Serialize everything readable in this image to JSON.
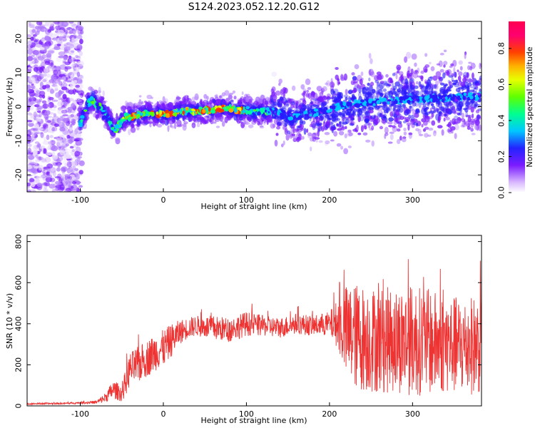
{
  "title": "S124.2023.052.12.20.G12",
  "chart_data": [
    {
      "type": "heatmap",
      "xlabel": "Height of straight line (km)",
      "ylabel": "Frequency (Hz)",
      "xlim": [
        -164,
        383
      ],
      "ylim": [
        -25,
        25
      ],
      "xticks": [
        -100,
        0,
        100,
        200,
        300
      ],
      "yticks": [
        -20,
        -10,
        0,
        10,
        20
      ],
      "colorbar": {
        "label": "Normalized spectral amplitude",
        "range": [
          0,
          0.95
        ],
        "ticks": [
          0.0,
          0.2,
          0.4,
          0.6,
          0.8
        ]
      },
      "ridge": {
        "x": [
          -100,
          -95,
          -90,
          -85,
          -80,
          -75,
          -70,
          -65,
          -60,
          -55,
          -50,
          -45,
          -40,
          -30,
          -20,
          -10,
          0,
          10,
          20,
          30,
          40,
          50,
          60,
          70,
          80,
          90,
          100,
          110,
          120,
          130,
          140,
          150,
          160,
          170,
          180,
          190,
          200,
          210,
          220,
          240,
          260,
          280,
          300,
          320,
          340,
          360,
          380
        ],
        "y": [
          -5,
          -2,
          1,
          2,
          0,
          0,
          -2,
          -4,
          -7,
          -6,
          -4,
          -3,
          -3,
          -2.5,
          -2,
          -2,
          -2,
          -2,
          -1.5,
          -1.5,
          -1.5,
          -1,
          -1,
          -0.5,
          -0.5,
          -1,
          -1,
          -1.5,
          -1.5,
          -1,
          -2,
          -2.5,
          -3,
          -2,
          -2,
          -1.5,
          -1,
          0,
          0.5,
          1,
          1.5,
          2,
          2,
          2.5,
          2.5,
          3,
          3
        ]
      }
    },
    {
      "type": "line",
      "xlabel": "Height of straight line (km)",
      "ylabel": "SNR (10 * v/v)",
      "xlim": [
        -164,
        383
      ],
      "ylim": [
        0,
        830
      ],
      "xticks": [
        -100,
        0,
        100,
        200,
        300
      ],
      "yticks": [
        0,
        200,
        400,
        600,
        800
      ],
      "series": [
        {
          "color": "#ee3333",
          "x": [
            -164,
            -120,
            -100,
            -80,
            -70,
            -60,
            -50,
            -45,
            -40,
            -30,
            -20,
            -10,
            0,
            10,
            20,
            30,
            40,
            60,
            80,
            100,
            120,
            140,
            160,
            180,
            200,
            210,
            220,
            230,
            240,
            260,
            280,
            300,
            320,
            340,
            360,
            383
          ],
          "y": [
            10,
            12,
            15,
            18,
            40,
            80,
            60,
            120,
            180,
            200,
            230,
            260,
            280,
            320,
            360,
            380,
            390,
            380,
            370,
            400,
            390,
            380,
            400,
            390,
            400,
            400,
            360,
            340,
            330,
            320,
            320,
            320,
            310,
            300,
            290,
            300
          ],
          "amp": [
            4,
            4,
            5,
            8,
            25,
            45,
            40,
            70,
            80,
            90,
            90,
            90,
            90,
            80,
            60,
            50,
            50,
            60,
            60,
            60,
            50,
            50,
            50,
            50,
            60,
            120,
            230,
            260,
            260,
            260,
            260,
            270,
            260,
            240,
            240,
            240
          ]
        }
      ]
    }
  ]
}
